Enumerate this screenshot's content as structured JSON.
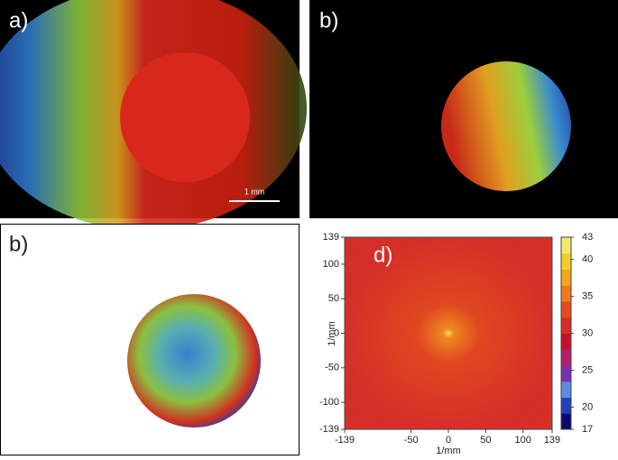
{
  "panels": [
    {
      "label": "a)",
      "scale_bar": "1 mm"
    },
    {
      "label": "b)"
    },
    {
      "label": "b)"
    }
  ],
  "chart_data": {
    "type": "heatmap",
    "label": "d)",
    "xlabel": "1/mm",
    "ylabel": "1/mm",
    "xlim": [
      -139,
      139
    ],
    "ylim": [
      -139,
      139
    ],
    "xticks": [
      -139,
      -50,
      0,
      50,
      100,
      139
    ],
    "yticks": [
      -139,
      -100,
      -50,
      0,
      50,
      100,
      139
    ],
    "colorbar": {
      "lim": [
        17,
        43
      ],
      "ticks": [
        17,
        20,
        25,
        30,
        35,
        40,
        43
      ],
      "colors": [
        "#0a0a6e",
        "#2040c0",
        "#5a8fe0",
        "#7a2fb0",
        "#b0206a",
        "#c8102e",
        "#d92a24",
        "#e4491f",
        "#ee7a1c",
        "#f3a51e",
        "#f4cd2a",
        "#f2e96a"
      ]
    }
  }
}
